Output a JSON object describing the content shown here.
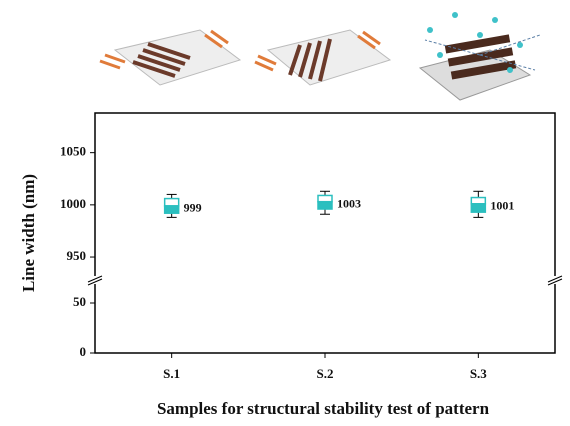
{
  "chart_data": {
    "type": "box",
    "x_label": "Samples for structural stability test of pattern",
    "y_label": "Line width (nm)",
    "categories": [
      "S.1",
      "S.2",
      "S.3"
    ],
    "color": "#2bbfbf",
    "boxes": [
      {
        "min": 988,
        "q1": 992,
        "median": 999,
        "q3": 1006,
        "max": 1010
      },
      {
        "min": 991,
        "q1": 996,
        "median": 1003,
        "q3": 1009,
        "max": 1013
      },
      {
        "min": 988,
        "q1": 993,
        "median": 1001,
        "q3": 1007,
        "max": 1013
      }
    ],
    "ylim": [
      0,
      1088
    ],
    "y_break": [
      73,
      928
    ],
    "yticks": [
      0,
      50,
      950,
      1000,
      1050
    ]
  }
}
